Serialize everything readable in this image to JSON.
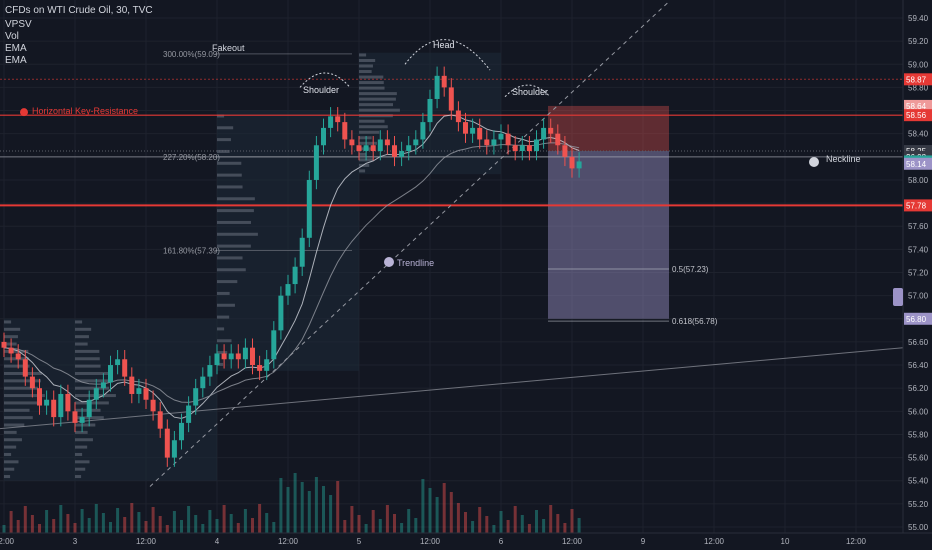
{
  "header": {
    "title": "CFDs on WTI Crude Oil, 30, TVC",
    "indicators": [
      "VPSV",
      "Vol",
      "EMA",
      "EMA"
    ]
  },
  "colors": {
    "background": "#131722",
    "up": "#26a69a",
    "down": "#ef5350",
    "resistance": "#e53935",
    "axis_text": "#b2b5be",
    "annotation": "#b9b3d6"
  },
  "annotations": {
    "fakeout": "Fakeout",
    "head": "Head",
    "shoulder_left": "Shoulder",
    "shoulder_right": "Shoulder",
    "neckline": "Neckline",
    "trendline": "Trendline",
    "horizontal_resistance": "Horizontal Key-Resistance",
    "fib_300": "300.00%(59.09)",
    "fib_227": "227.20%(58.20)",
    "fib_161": "161.80%(57.39)",
    "fib_05": "0.5(57.23)",
    "fib_0618": "0.618(56.78)"
  },
  "chart_data": {
    "type": "candlestick",
    "title": "CFDs on WTI Crude Oil, 30, TVC",
    "y_axis_ticks": [
      55.0,
      55.2,
      55.4,
      55.6,
      55.8,
      56.0,
      56.2,
      56.4,
      56.6,
      56.8,
      57.0,
      57.2,
      57.4,
      57.6,
      57.8,
      58.0,
      58.2,
      58.4,
      58.6,
      58.8,
      59.0,
      59.2,
      59.4
    ],
    "y_axis_tick_labels": [
      "55.00",
      "55.20",
      "55.40",
      "55.60",
      "55.80",
      "56.00",
      "56.20",
      "56.40",
      "56.60",
      "56.80",
      "57.00",
      "57.20",
      "57.40",
      "57.60",
      "57.80",
      "58.00",
      "58.20",
      "58.40",
      "58.60",
      "58.80",
      "59.00",
      "59.20",
      "59.40"
    ],
    "ylim": [
      54.95,
      59.55
    ],
    "x_axis_labels": [
      "12:00",
      "3",
      "12:00",
      "4",
      "12:00",
      "5",
      "12:00",
      "6",
      "12:00",
      "9",
      "12:00",
      "10",
      "12:00"
    ],
    "x_axis_label_bars": [
      0,
      10,
      20,
      30,
      40,
      50,
      60,
      70,
      80,
      90,
      100,
      110,
      120
    ],
    "price_labels": [
      {
        "text": "58.87",
        "value": 58.87,
        "color": "#e53935"
      },
      {
        "text": "58.64",
        "value": 58.64,
        "color": "#ef9a9a"
      },
      {
        "text": "58.56",
        "value": 58.56,
        "color": "#e53935"
      },
      {
        "text": "58.25",
        "value": 58.25,
        "color": "#363a45"
      },
      {
        "text": "26:08",
        "value": 58.2,
        "color": "#363a45"
      },
      {
        "text": "58.16",
        "value": 58.16,
        "color": "#26a69a"
      },
      {
        "text": "58.14",
        "value": 58.14,
        "color": "#9c93c7"
      },
      {
        "text": "57.78",
        "value": 57.78,
        "color": "#e53935"
      },
      {
        "text": "56.80",
        "value": 56.8,
        "color": "#9c93c7"
      }
    ],
    "closes": [
      56.55,
      56.5,
      56.45,
      56.3,
      56.2,
      56.05,
      56.1,
      55.95,
      56.15,
      56.0,
      55.9,
      55.95,
      56.1,
      56.2,
      56.25,
      56.4,
      56.45,
      56.3,
      56.15,
      56.2,
      56.1,
      56.0,
      55.85,
      55.6,
      55.75,
      55.9,
      56.05,
      56.2,
      56.3,
      56.4,
      56.5,
      56.45,
      56.5,
      56.45,
      56.55,
      56.4,
      56.35,
      56.45,
      56.7,
      57.0,
      57.1,
      57.25,
      57.5,
      58.0,
      58.3,
      58.45,
      58.55,
      58.5,
      58.35,
      58.3,
      58.25,
      58.3,
      58.25,
      58.35,
      58.3,
      58.2,
      58.25,
      58.3,
      58.35,
      58.5,
      58.7,
      58.9,
      58.8,
      58.6,
      58.5,
      58.4,
      58.45,
      58.35,
      58.3,
      58.35,
      58.4,
      58.3,
      58.25,
      58.3,
      58.25,
      58.35,
      58.45,
      58.4,
      58.3,
      58.2,
      58.1,
      58.16
    ],
    "series": [
      {
        "name": "EMA",
        "values": []
      },
      {
        "name": "EMA",
        "values": []
      }
    ],
    "trade_box": {
      "stop_top": 58.64,
      "entry": 58.25,
      "target": 56.8
    },
    "fib_levels": [
      59.09,
      58.2,
      57.39,
      57.23,
      56.78
    ],
    "horizontal_resistance": 58.56,
    "support_line": 57.78,
    "neckline": 58.2,
    "grid": true
  }
}
